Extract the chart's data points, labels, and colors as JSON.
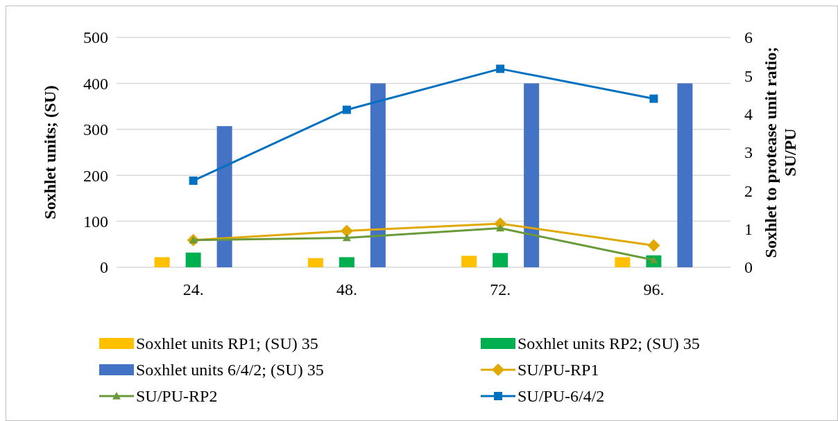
{
  "chart_data": {
    "type": "bar",
    "categories": [
      "24.",
      "48.",
      "72.",
      "96."
    ],
    "ylabel": "Soxhlet units; (SU)",
    "y2label": "Soxhlet to protease unit ratio; SU/PU",
    "ylim": [
      0,
      500
    ],
    "yticks": [
      0,
      100,
      200,
      300,
      400,
      500
    ],
    "y2lim": [
      0,
      6
    ],
    "y2ticks": [
      0,
      1,
      2,
      3,
      4,
      5,
      6
    ],
    "grid": "y",
    "legend": "bottom",
    "series": [
      {
        "name": "Soxhlet units RP1; (SU) 35",
        "color": "#ffc000",
        "values": [
          22,
          20,
          25,
          22
        ]
      },
      {
        "name": "Soxhlet units RP2; (SU) 35",
        "color": "#00b050",
        "values": [
          32,
          22,
          31,
          26
        ]
      },
      {
        "name": "Soxhlet units 6/4/2; (SU) 35",
        "color": "#4472c4",
        "values": [
          307,
          400,
          400,
          400
        ]
      },
      {
        "name": "SU/PU-RP1",
        "type": "line",
        "axis": "y2",
        "marker": "diamond",
        "color": "#e0a800",
        "values": [
          0.71,
          0.95,
          1.14,
          0.57
        ]
      },
      {
        "name": "SU/PU-RP2",
        "type": "line",
        "axis": "y2",
        "marker": "triangle",
        "color": "#6a9a3a",
        "values": [
          0.71,
          0.77,
          1.02,
          0.19
        ]
      },
      {
        "name": "SU/PU-6/4/2",
        "type": "line",
        "axis": "y2",
        "marker": "square",
        "color": "#0070c0",
        "values": [
          2.26,
          4.11,
          5.18,
          4.4
        ]
      }
    ]
  }
}
